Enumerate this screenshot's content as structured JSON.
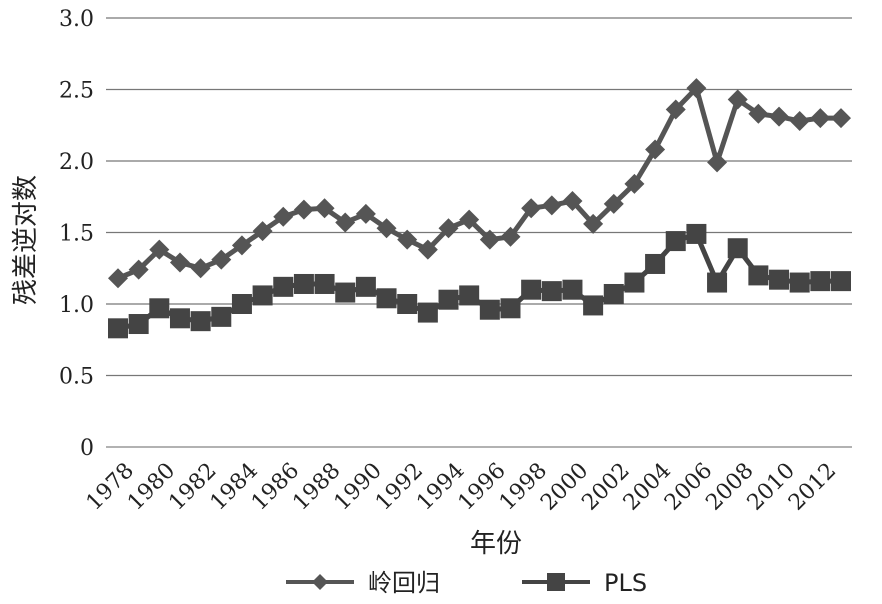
{
  "chart_data": {
    "type": "line",
    "xlabel": "年份",
    "ylabel": "残差逆对数",
    "ylim": [
      0,
      3.0
    ],
    "yticks": [
      "0",
      "0.5",
      "1.0",
      "1.5",
      "2.0",
      "2.5",
      "3.0"
    ],
    "x": [
      1978,
      1979,
      1980,
      1981,
      1982,
      1983,
      1984,
      1985,
      1986,
      1987,
      1988,
      1989,
      1990,
      1991,
      1992,
      1993,
      1994,
      1995,
      1996,
      1997,
      1998,
      1999,
      2000,
      2001,
      2002,
      2003,
      2004,
      2005,
      2006,
      2007,
      2008,
      2009,
      2010,
      2011,
      2012,
      2013
    ],
    "xticks": [
      "1978",
      "1980",
      "1982",
      "1984",
      "1986",
      "1988",
      "1990",
      "1992",
      "1994",
      "1996",
      "1998",
      "2000",
      "2002",
      "2004",
      "2006",
      "2008",
      "2010",
      "2012"
    ],
    "grid": true,
    "legend": "bottom",
    "series": [
      {
        "name": "岭回归",
        "marker": "diamond",
        "color": "#555555",
        "values": [
          1.18,
          1.24,
          1.38,
          1.29,
          1.25,
          1.31,
          1.41,
          1.51,
          1.61,
          1.66,
          1.67,
          1.57,
          1.63,
          1.53,
          1.45,
          1.38,
          1.53,
          1.59,
          1.45,
          1.47,
          1.67,
          1.69,
          1.72,
          1.56,
          1.7,
          1.84,
          2.08,
          2.36,
          2.51,
          1.99,
          2.43,
          2.33,
          2.31,
          2.28,
          2.3,
          2.3
        ]
      },
      {
        "name": "PLS",
        "marker": "square",
        "color": "#444444",
        "values": [
          0.83,
          0.86,
          0.97,
          0.9,
          0.88,
          0.91,
          1.0,
          1.06,
          1.12,
          1.14,
          1.14,
          1.08,
          1.12,
          1.04,
          1.0,
          0.94,
          1.03,
          1.06,
          0.96,
          0.97,
          1.1,
          1.09,
          1.1,
          0.99,
          1.07,
          1.15,
          1.28,
          1.44,
          1.49,
          1.15,
          1.39,
          1.2,
          1.17,
          1.15,
          1.16,
          1.16
        ]
      }
    ]
  }
}
